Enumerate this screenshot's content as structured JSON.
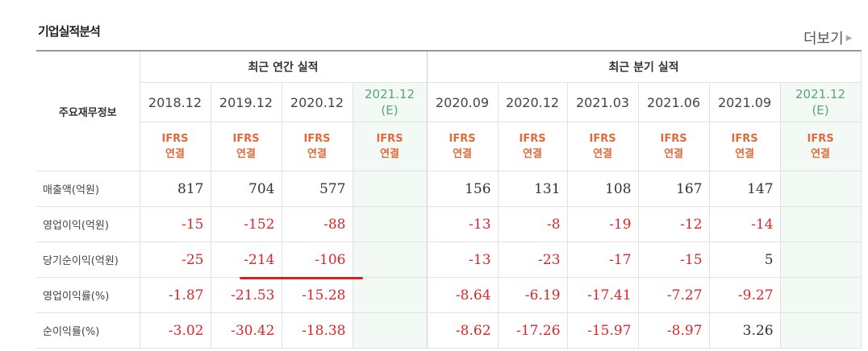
{
  "title": "기업실적분석",
  "more_label": "더보기",
  "header": {
    "row_label": "주요재무정보",
    "group_annual": "최근 연간 실적",
    "group_quarter": "최근 분기 실적",
    "periods": [
      {
        "date": "2018.12",
        "est": "",
        "basis1": "IFRS",
        "basis2": "연결"
      },
      {
        "date": "2019.12",
        "est": "",
        "basis1": "IFRS",
        "basis2": "연결"
      },
      {
        "date": "2020.12",
        "est": "",
        "basis1": "IFRS",
        "basis2": "연결"
      },
      {
        "date": "2021.12",
        "est": "(E)",
        "basis1": "IFRS",
        "basis2": "연결"
      },
      {
        "date": "2020.09",
        "est": "",
        "basis1": "IFRS",
        "basis2": "연결"
      },
      {
        "date": "2020.12",
        "est": "",
        "basis1": "IFRS",
        "basis2": "연결"
      },
      {
        "date": "2021.03",
        "est": "",
        "basis1": "IFRS",
        "basis2": "연결"
      },
      {
        "date": "2021.06",
        "est": "",
        "basis1": "IFRS",
        "basis2": "연결"
      },
      {
        "date": "2021.09",
        "est": "",
        "basis1": "IFRS",
        "basis2": "연결"
      },
      {
        "date": "2021.12",
        "est": "(E)",
        "basis1": "IFRS",
        "basis2": "연결"
      }
    ]
  },
  "rows": [
    {
      "label": "매출액(억원)",
      "values": [
        "817",
        "704",
        "577",
        "",
        "156",
        "131",
        "108",
        "167",
        "147",
        ""
      ]
    },
    {
      "label": "영업이익(억원)",
      "values": [
        "-15",
        "-152",
        "-88",
        "",
        "-13",
        "-8",
        "-19",
        "-12",
        "-14",
        ""
      ]
    },
    {
      "label": "당기순이익(억원)",
      "values": [
        "-25",
        "-214",
        "-106",
        "",
        "-13",
        "-23",
        "-17",
        "-15",
        "5",
        ""
      ]
    },
    {
      "label": "영업이익률(%)",
      "values": [
        "-1.87",
        "-21.53",
        "-15.28",
        "",
        "-8.64",
        "-6.19",
        "-17.41",
        "-7.27",
        "-9.27",
        ""
      ]
    },
    {
      "label": "순이익률(%)",
      "values": [
        "-3.02",
        "-30.42",
        "-18.38",
        "",
        "-8.62",
        "-17.26",
        "-15.97",
        "-8.97",
        "3.26",
        ""
      ]
    }
  ],
  "colors": {
    "negative": "#d8282b",
    "estimate_bg": "#f3faf5",
    "basis": "#e06a3a",
    "highlight_underline": "#e11d1d"
  }
}
